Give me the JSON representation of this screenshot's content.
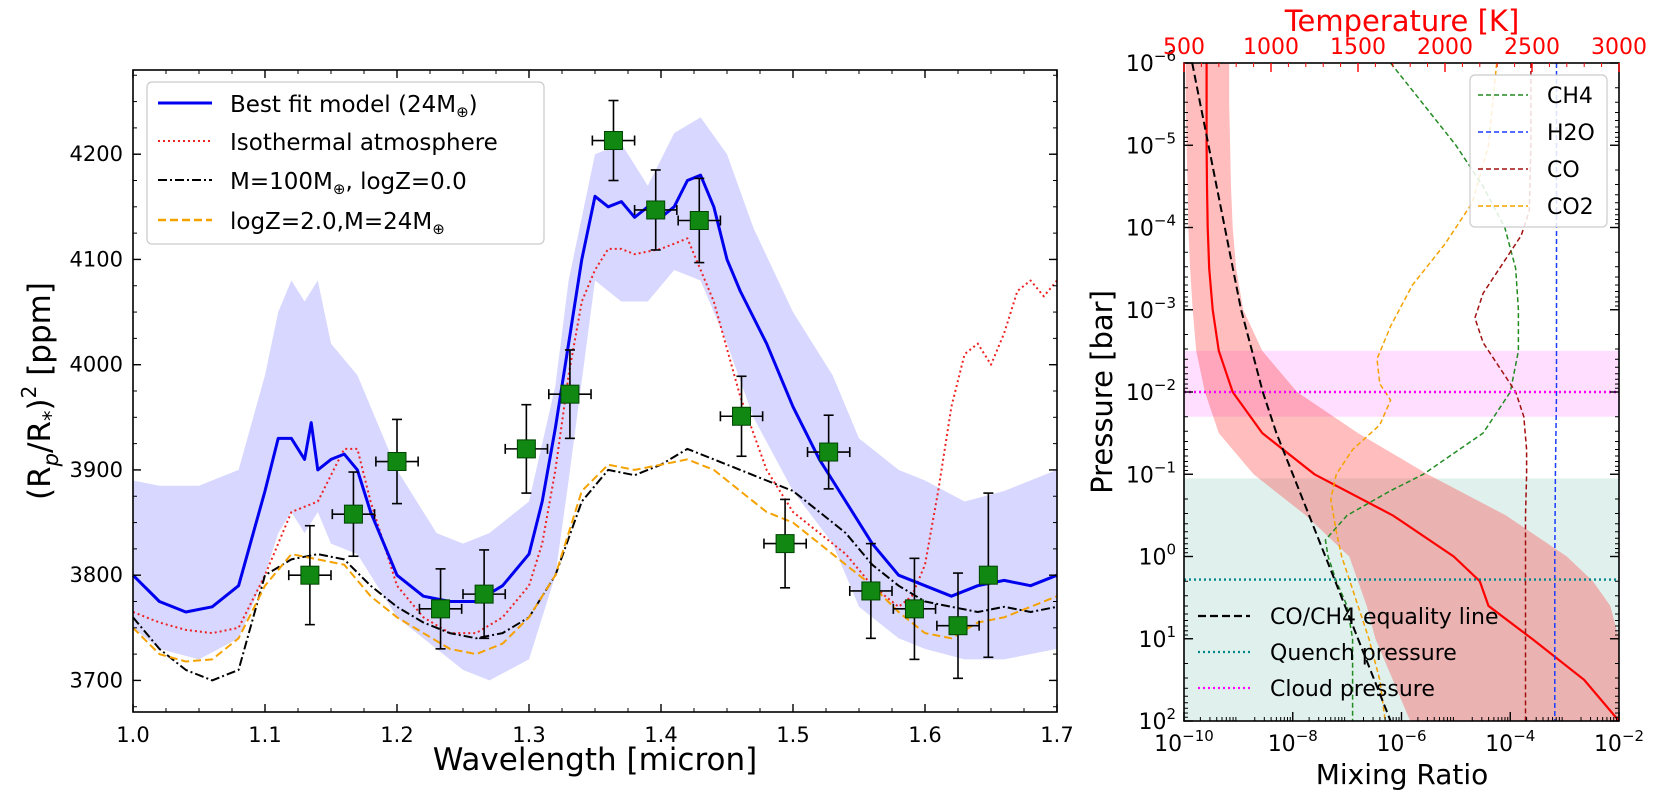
{
  "chart_data": [
    {
      "type": "line",
      "xlabel": "Wavelength [micron]",
      "ylabel_main": "(R",
      "ylabel_sub_p": "p",
      "ylabel_mid": "/R",
      "ylabel_sub_star": "*",
      "ylabel_close": ")",
      "ylabel_sup": "2",
      "ylabel_unit": " [ppm]",
      "xlim": [
        1.0,
        1.7
      ],
      "ylim": [
        3670,
        4280
      ],
      "xticks": [
        "1.0",
        "1.1",
        "1.2",
        "1.3",
        "1.4",
        "1.5",
        "1.6",
        "1.7"
      ],
      "xtick_values": [
        1.0,
        1.1,
        1.2,
        1.3,
        1.4,
        1.5,
        1.6,
        1.7
      ],
      "yticks": [
        "3700",
        "3800",
        "3900",
        "4000",
        "4100",
        "4200"
      ],
      "ytick_values": [
        3700,
        3800,
        3900,
        4000,
        4100,
        4200
      ],
      "legend": [
        {
          "label": "Best fit model (24M",
          "suffix": "⊕",
          "tail": ")",
          "color": "#0000ee",
          "style": "solid"
        },
        {
          "label": "Isothermal atmosphere",
          "suffix": "",
          "tail": "",
          "color": "#ee2222",
          "style": "dotted"
        },
        {
          "label": "M=100M",
          "suffix": "⊕",
          "tail": ", logZ=0.0",
          "color": "#000000",
          "style": "dashdot"
        },
        {
          "label": "logZ=2.0,M=24M",
          "suffix": "⊕",
          "tail": "",
          "color": "#f5a200",
          "style": "dashed"
        }
      ],
      "band": {
        "name": "best-fit uncertainty",
        "x": [
          1.0,
          1.02,
          1.05,
          1.08,
          1.1,
          1.11,
          1.12,
          1.13,
          1.14,
          1.15,
          1.17,
          1.2,
          1.23,
          1.25,
          1.27,
          1.3,
          1.32,
          1.33,
          1.35,
          1.37,
          1.39,
          1.41,
          1.43,
          1.45,
          1.47,
          1.5,
          1.53,
          1.55,
          1.58,
          1.6,
          1.63,
          1.66,
          1.7
        ],
        "upper": [
          3890,
          3885,
          3885,
          3900,
          3990,
          4050,
          4080,
          4060,
          4080,
          4020,
          3990,
          3900,
          3840,
          3830,
          3840,
          3870,
          3980,
          4080,
          4200,
          4210,
          4170,
          4220,
          4235,
          4200,
          4130,
          4050,
          3990,
          3930,
          3900,
          3890,
          3870,
          3880,
          3900
        ],
        "lower": [
          3750,
          3730,
          3720,
          3740,
          3800,
          3840,
          3860,
          3840,
          3860,
          3830,
          3820,
          3760,
          3730,
          3710,
          3700,
          3720,
          3800,
          3890,
          4080,
          4060,
          4060,
          4090,
          4080,
          4020,
          3950,
          3880,
          3830,
          3770,
          3740,
          3730,
          3720,
          3720,
          3730
        ]
      },
      "series": [
        {
          "name": "Best fit model",
          "color": "#0000ee",
          "style": "solid",
          "x": [
            1.0,
            1.02,
            1.04,
            1.06,
            1.08,
            1.1,
            1.11,
            1.12,
            1.13,
            1.135,
            1.14,
            1.15,
            1.16,
            1.17,
            1.18,
            1.2,
            1.22,
            1.24,
            1.26,
            1.28,
            1.3,
            1.31,
            1.32,
            1.33,
            1.34,
            1.35,
            1.36,
            1.37,
            1.38,
            1.39,
            1.4,
            1.41,
            1.42,
            1.43,
            1.44,
            1.45,
            1.46,
            1.48,
            1.5,
            1.52,
            1.54,
            1.56,
            1.58,
            1.6,
            1.62,
            1.64,
            1.66,
            1.68,
            1.7
          ],
          "y": [
            3800,
            3775,
            3765,
            3770,
            3790,
            3880,
            3930,
            3930,
            3910,
            3945,
            3900,
            3910,
            3915,
            3900,
            3860,
            3800,
            3780,
            3775,
            3775,
            3790,
            3820,
            3870,
            3940,
            4020,
            4100,
            4160,
            4150,
            4155,
            4140,
            4150,
            4140,
            4150,
            4175,
            4180,
            4150,
            4100,
            4070,
            4020,
            3960,
            3910,
            3870,
            3830,
            3800,
            3790,
            3780,
            3790,
            3795,
            3790,
            3800
          ]
        },
        {
          "name": "Isothermal atmosphere",
          "color": "#ee2222",
          "style": "dotted",
          "x": [
            1.0,
            1.02,
            1.04,
            1.06,
            1.08,
            1.1,
            1.12,
            1.14,
            1.16,
            1.17,
            1.18,
            1.2,
            1.22,
            1.24,
            1.26,
            1.28,
            1.3,
            1.31,
            1.32,
            1.33,
            1.34,
            1.35,
            1.36,
            1.37,
            1.38,
            1.4,
            1.42,
            1.44,
            1.46,
            1.48,
            1.5,
            1.52,
            1.54,
            1.56,
            1.58,
            1.59,
            1.6,
            1.61,
            1.62,
            1.63,
            1.64,
            1.65,
            1.66,
            1.67,
            1.68,
            1.69,
            1.7
          ],
          "y": [
            3765,
            3755,
            3748,
            3745,
            3750,
            3800,
            3860,
            3870,
            3920,
            3920,
            3870,
            3790,
            3760,
            3745,
            3745,
            3760,
            3790,
            3830,
            3900,
            3990,
            4060,
            4090,
            4110,
            4110,
            4105,
            4110,
            4120,
            4060,
            3970,
            3900,
            3860,
            3840,
            3820,
            3790,
            3770,
            3780,
            3810,
            3880,
            3960,
            4010,
            4020,
            4000,
            4030,
            4070,
            4080,
            4065,
            4080
          ]
        },
        {
          "name": "M=100, logZ=0.0",
          "color": "#000000",
          "style": "dashdot",
          "x": [
            1.0,
            1.02,
            1.04,
            1.06,
            1.08,
            1.1,
            1.12,
            1.14,
            1.16,
            1.18,
            1.2,
            1.22,
            1.24,
            1.26,
            1.28,
            1.3,
            1.32,
            1.34,
            1.36,
            1.38,
            1.4,
            1.42,
            1.44,
            1.46,
            1.48,
            1.5,
            1.52,
            1.54,
            1.56,
            1.58,
            1.6,
            1.62,
            1.64,
            1.66,
            1.68,
            1.7
          ],
          "y": [
            3760,
            3730,
            3710,
            3700,
            3710,
            3800,
            3815,
            3820,
            3815,
            3790,
            3770,
            3755,
            3745,
            3740,
            3745,
            3760,
            3800,
            3870,
            3900,
            3895,
            3905,
            3920,
            3910,
            3900,
            3890,
            3880,
            3860,
            3840,
            3810,
            3790,
            3775,
            3770,
            3765,
            3770,
            3765,
            3770
          ]
        },
        {
          "name": "logZ=2.0,M=24",
          "color": "#f5a200",
          "style": "dashed",
          "x": [
            1.0,
            1.02,
            1.04,
            1.06,
            1.08,
            1.1,
            1.12,
            1.14,
            1.16,
            1.18,
            1.2,
            1.22,
            1.24,
            1.26,
            1.28,
            1.3,
            1.32,
            1.34,
            1.36,
            1.38,
            1.4,
            1.42,
            1.44,
            1.46,
            1.48,
            1.5,
            1.52,
            1.54,
            1.56,
            1.58,
            1.6,
            1.62,
            1.64,
            1.66,
            1.68,
            1.7
          ],
          "y": [
            3750,
            3725,
            3718,
            3720,
            3740,
            3790,
            3820,
            3815,
            3810,
            3780,
            3760,
            3745,
            3730,
            3725,
            3735,
            3760,
            3800,
            3880,
            3905,
            3900,
            3905,
            3910,
            3900,
            3880,
            3860,
            3850,
            3830,
            3810,
            3790,
            3765,
            3745,
            3740,
            3755,
            3760,
            3770,
            3780
          ]
        }
      ],
      "points": {
        "name": "observed data",
        "color": "#118811",
        "x": [
          1.134,
          1.167,
          1.2,
          1.233,
          1.266,
          1.298,
          1.331,
          1.364,
          1.396,
          1.429,
          1.461,
          1.494,
          1.527,
          1.559,
          1.592,
          1.625,
          1.648
        ],
        "y": [
          3800,
          3858,
          3908,
          3768,
          3782,
          3920,
          3972,
          4213,
          4147,
          4137,
          3951,
          3830,
          3917,
          3785,
          3768,
          3752,
          3800
        ],
        "yerr": [
          47,
          40,
          40,
          38,
          42,
          42,
          42,
          38,
          38,
          40,
          38,
          42,
          35,
          45,
          48,
          50,
          78
        ],
        "xerr": [
          0.016,
          0.016,
          0.016,
          0.016,
          0.016,
          0.016,
          0.016,
          0.016,
          0.016,
          0.016,
          0.016,
          0.016,
          0.016,
          0.016,
          0.016,
          0.016,
          0.0
        ]
      }
    },
    {
      "type": "line",
      "xlabel": "Mixing Ratio",
      "ylabel": "Pressure [bar]",
      "top_xlabel": "Temperature [K]",
      "x_scale": "log",
      "y_scale": "log",
      "xlim_log": [
        -10,
        -2
      ],
      "ylim_log": [
        -6,
        2
      ],
      "xticks": [
        {
          "base": "10",
          "exp": "−10"
        },
        {
          "base": "10",
          "exp": "−8"
        },
        {
          "base": "10",
          "exp": "−6"
        },
        {
          "base": "10",
          "exp": "−4"
        },
        {
          "base": "10",
          "exp": "−2"
        }
      ],
      "xtick_values_log": [
        -10,
        -8,
        -6,
        -4,
        -2
      ],
      "yticks": [
        {
          "base": "10",
          "exp": "−6"
        },
        {
          "base": "10",
          "exp": "−5"
        },
        {
          "base": "10",
          "exp": "−4"
        },
        {
          "base": "10",
          "exp": "−3"
        },
        {
          "base": "10",
          "exp": "−2"
        },
        {
          "base": "10",
          "exp": "−1"
        },
        {
          "base": "10",
          "exp": "0"
        },
        {
          "base": "10",
          "exp": "1"
        },
        {
          "base": "10",
          "exp": "2"
        }
      ],
      "ytick_values_log": [
        -6,
        -5,
        -4,
        -3,
        -2,
        -1,
        0,
        1,
        2
      ],
      "temp_xlim": [
        500,
        3000
      ],
      "temp_ticks": [
        "500",
        "1000",
        "1500",
        "2000",
        "2500",
        "3000"
      ],
      "temp_tick_values": [
        500,
        1000,
        1500,
        2000,
        2500,
        3000
      ],
      "temp_color": "#ff0000",
      "regions": [
        {
          "name": "cloud region",
          "color": "#ff88ff",
          "opacity": 0.28,
          "p_log_top": -2.5,
          "p_log_bottom": -1.7
        },
        {
          "name": "quench region",
          "color": "#8ec8c0",
          "opacity": 0.28,
          "p_log_top": -0.95,
          "p_log_bottom": 2.0
        }
      ],
      "hlines": [
        {
          "name": "Cloud pressure",
          "color": "#ff00ff",
          "p_log": -2.0
        },
        {
          "name": "Quench pressure",
          "color": "#008888",
          "p_log": 0.28
        }
      ],
      "temperature_profile": {
        "color": "#ff0000",
        "p_log": [
          -6,
          -5.5,
          -5,
          -4.5,
          -4,
          -3.5,
          -3,
          -2.5,
          -2,
          -1.5,
          -1,
          -0.5,
          0,
          0.3,
          0.6,
          1,
          1.5,
          2
        ],
        "t": [
          630,
          630,
          630,
          632,
          636,
          645,
          665,
          700,
          780,
          950,
          1250,
          1700,
          2050,
          2200,
          2250,
          2500,
          2800,
          3000
        ],
        "t_low": [
          510,
          510,
          515,
          520,
          525,
          535,
          550,
          570,
          620,
          700,
          900,
          1200,
          1450,
          1500,
          1550,
          1600,
          1700,
          1800
        ],
        "t_high": [
          760,
          760,
          765,
          770,
          780,
          800,
          840,
          950,
          1150,
          1500,
          1900,
          2350,
          2700,
          2850,
          2950,
          3000,
          3000,
          3000
        ]
      },
      "legend_species": [
        {
          "label": "CH4",
          "color": "#228b22"
        },
        {
          "label": "H2O",
          "color": "#1a3cff"
        },
        {
          "label": "CO",
          "color": "#a01010"
        },
        {
          "label": "CO2",
          "color": "#f5a200"
        }
      ],
      "legend_lines": [
        {
          "label": "CO/CH4 equality line",
          "color": "#000000",
          "style": "dashed"
        },
        {
          "label": "Quench pressure",
          "color": "#008888",
          "style": "dotted"
        },
        {
          "label": "Cloud pressure",
          "color": "#ff00ff",
          "style": "dotted"
        }
      ],
      "species": [
        {
          "name": "CH4",
          "color": "#228b22",
          "p_log": [
            -6,
            -5.5,
            -5,
            -4.5,
            -4,
            -3.5,
            -3,
            -2.5,
            -2,
            -1.5,
            -1,
            -0.8,
            -0.5,
            -0.2,
            0,
            0.3,
            0.6,
            1,
            1.5,
            2
          ],
          "x_log": [
            -6.2,
            -5.6,
            -5.0,
            -4.5,
            -4.1,
            -3.9,
            -3.85,
            -3.85,
            -4.0,
            -4.5,
            -5.6,
            -6.2,
            -7.0,
            -7.4,
            -7.35,
            -7.2,
            -7.0,
            -6.9,
            -6.9,
            -6.9
          ]
        },
        {
          "name": "H2O",
          "color": "#1a3cff",
          "p_log": [
            -6,
            -4,
            -3,
            -2,
            -1,
            0,
            1,
            2
          ],
          "x_log": [
            -3.15,
            -3.15,
            -3.15,
            -3.15,
            -3.17,
            -3.18,
            -3.18,
            -3.18
          ]
        },
        {
          "name": "CO",
          "color": "#a01010",
          "p_log": [
            -6,
            -5,
            -4.2,
            -3.9,
            -3.6,
            -3.2,
            -2.9,
            -2.6,
            -2.3,
            -2.0,
            -1.7,
            -1.3,
            -1.0,
            -0.5,
            0,
            1,
            2
          ],
          "x_log": [
            -3.62,
            -3.62,
            -3.65,
            -3.8,
            -4.1,
            -4.5,
            -4.65,
            -4.5,
            -4.2,
            -3.9,
            -3.75,
            -3.7,
            -3.7,
            -3.72,
            -3.72,
            -3.72,
            -3.72
          ]
        },
        {
          "name": "CO2",
          "color": "#f5a200",
          "p_log": [
            -6,
            -5,
            -4.3,
            -3.8,
            -3.3,
            -2.8,
            -2.4,
            -2.1,
            -1.9,
            -1.6,
            -1.3,
            -1.0,
            -0.7,
            -0.3,
            0,
            0.4,
            1,
            1.5,
            2
          ],
          "x_log": [
            -4.25,
            -4.4,
            -4.7,
            -5.2,
            -5.8,
            -6.2,
            -6.45,
            -6.4,
            -6.2,
            -6.4,
            -6.9,
            -7.2,
            -7.3,
            -7.2,
            -7.1,
            -6.9,
            -6.6,
            -6.4,
            -6.3
          ]
        },
        {
          "name": "CO/CH4 equality line",
          "color": "#000000",
          "dashed": true,
          "p_log": [
            -6,
            -5.5,
            -5,
            -4.5,
            -4,
            -3.5,
            -3,
            -2.5,
            -2,
            -1.5,
            -1,
            -0.5,
            0,
            0.5,
            1,
            1.5,
            2
          ],
          "x_log": [
            -9.85,
            -9.7,
            -9.55,
            -9.4,
            -9.25,
            -9.1,
            -8.95,
            -8.75,
            -8.55,
            -8.3,
            -8.0,
            -7.7,
            -7.4,
            -7.1,
            -6.8,
            -6.5,
            -6.2
          ]
        }
      ]
    }
  ]
}
